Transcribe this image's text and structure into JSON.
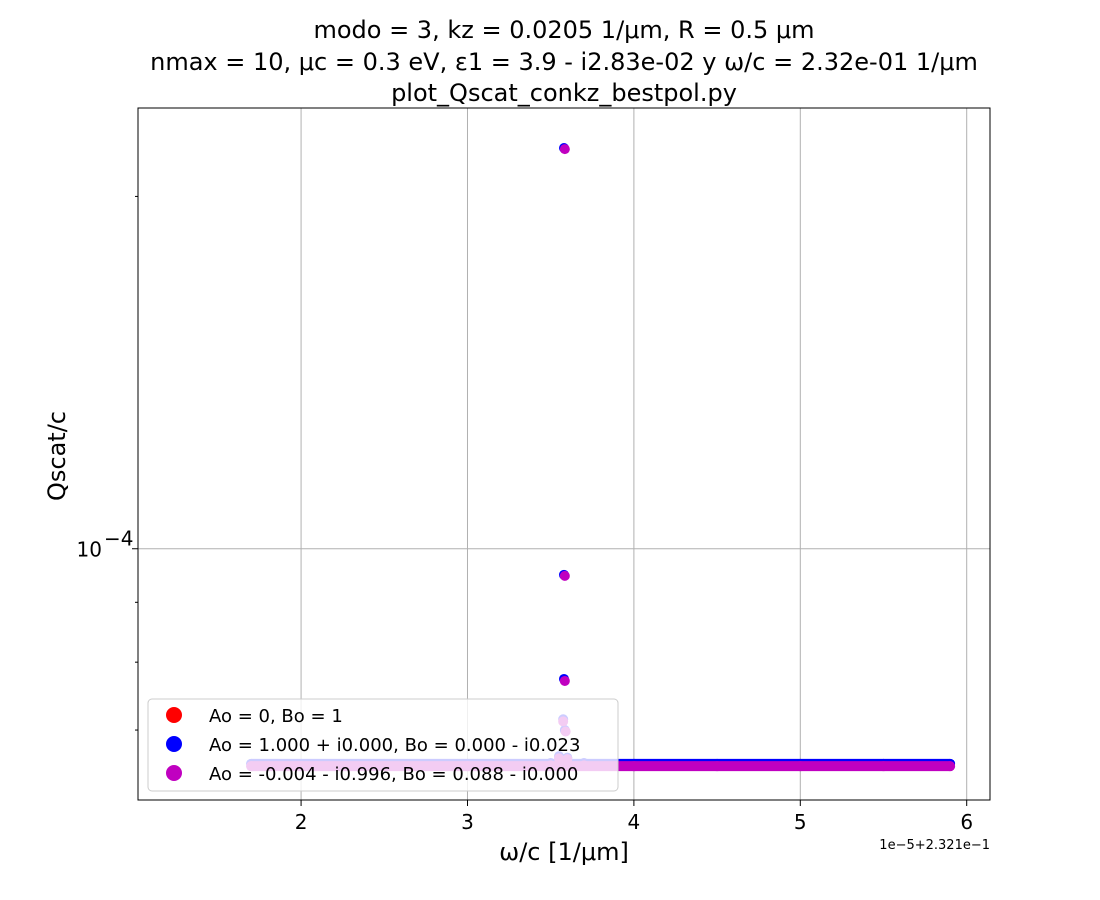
{
  "chart_data": {
    "type": "scatter",
    "title_lines": [
      "modo = 3, kz = 0.0205 1/μm, R = 0.5 μm",
      "nmax = 10, μc = 0.3 eV, ε1 = 3.9 - i2.83e-02 y ω/c = 2.32e-01 1/μm",
      "plot_Qscat_conkz_bestpol.py"
    ],
    "xlabel": "ω/c [1/μm]",
    "ylabel": "Qscat/c",
    "x_offset_label": "1e−5+2.321e−1",
    "x_ticks": [
      2,
      3,
      4,
      5,
      6
    ],
    "x_tick_labels": [
      "2",
      "3",
      "4",
      "5",
      "6"
    ],
    "y_major_tick_label": "10−4",
    "y_major_tick_base": "10",
    "y_major_tick_exp": "−4",
    "xlim": [
      1.02,
      6.14
    ],
    "ylim": [
      6.1e-05,
      0.000238
    ],
    "yscale": "log",
    "grid": true,
    "legend_placement": "lower-left",
    "series": [
      {
        "name": "Ao = 0, Bo = 1",
        "color": "#ff0000",
        "points": []
      },
      {
        "name": "Ao = 1.000 + i0.000, Bo = 0.000 - i0.023",
        "color": "#0000ff",
        "points": [
          [
            1.7,
            6.55e-05
          ],
          [
            2.0,
            6.55e-05
          ],
          [
            2.5,
            6.55e-05
          ],
          [
            3.0,
            6.55e-05
          ],
          [
            3.4,
            6.55e-05
          ],
          [
            3.5,
            6.56e-05
          ],
          [
            3.55,
            6.65e-05
          ],
          [
            3.575,
            7.15e-05
          ],
          [
            3.58,
            7.74e-05
          ],
          [
            3.58,
            9.5e-05
          ],
          [
            3.58,
            0.00022
          ],
          [
            3.585,
            7e-05
          ],
          [
            3.6,
            6.63e-05
          ],
          [
            3.7,
            6.56e-05
          ],
          [
            4.0,
            6.55e-05
          ],
          [
            4.5,
            6.55e-05
          ],
          [
            5.0,
            6.55e-05
          ],
          [
            5.5,
            6.55e-05
          ],
          [
            5.9,
            6.55e-05
          ]
        ]
      },
      {
        "name": "Ao = -0.004 - i0.996, Bo = 0.088 - i0.000",
        "color": "#c000c0",
        "points": [
          [
            1.7,
            6.52e-05
          ],
          [
            2.0,
            6.52e-05
          ],
          [
            2.5,
            6.52e-05
          ],
          [
            3.0,
            6.52e-05
          ],
          [
            3.4,
            6.52e-05
          ],
          [
            3.5,
            6.53e-05
          ],
          [
            3.55,
            6.62e-05
          ],
          [
            3.575,
            7.12e-05
          ],
          [
            3.585,
            7.71e-05
          ],
          [
            3.585,
            9.48e-05
          ],
          [
            3.585,
            0.0002195
          ],
          [
            3.59,
            6.98e-05
          ],
          [
            3.6,
            6.61e-05
          ],
          [
            3.7,
            6.53e-05
          ],
          [
            4.0,
            6.52e-05
          ],
          [
            4.5,
            6.52e-05
          ],
          [
            5.0,
            6.52e-05
          ],
          [
            5.5,
            6.52e-05
          ],
          [
            5.9,
            6.52e-05
          ]
        ]
      }
    ]
  }
}
